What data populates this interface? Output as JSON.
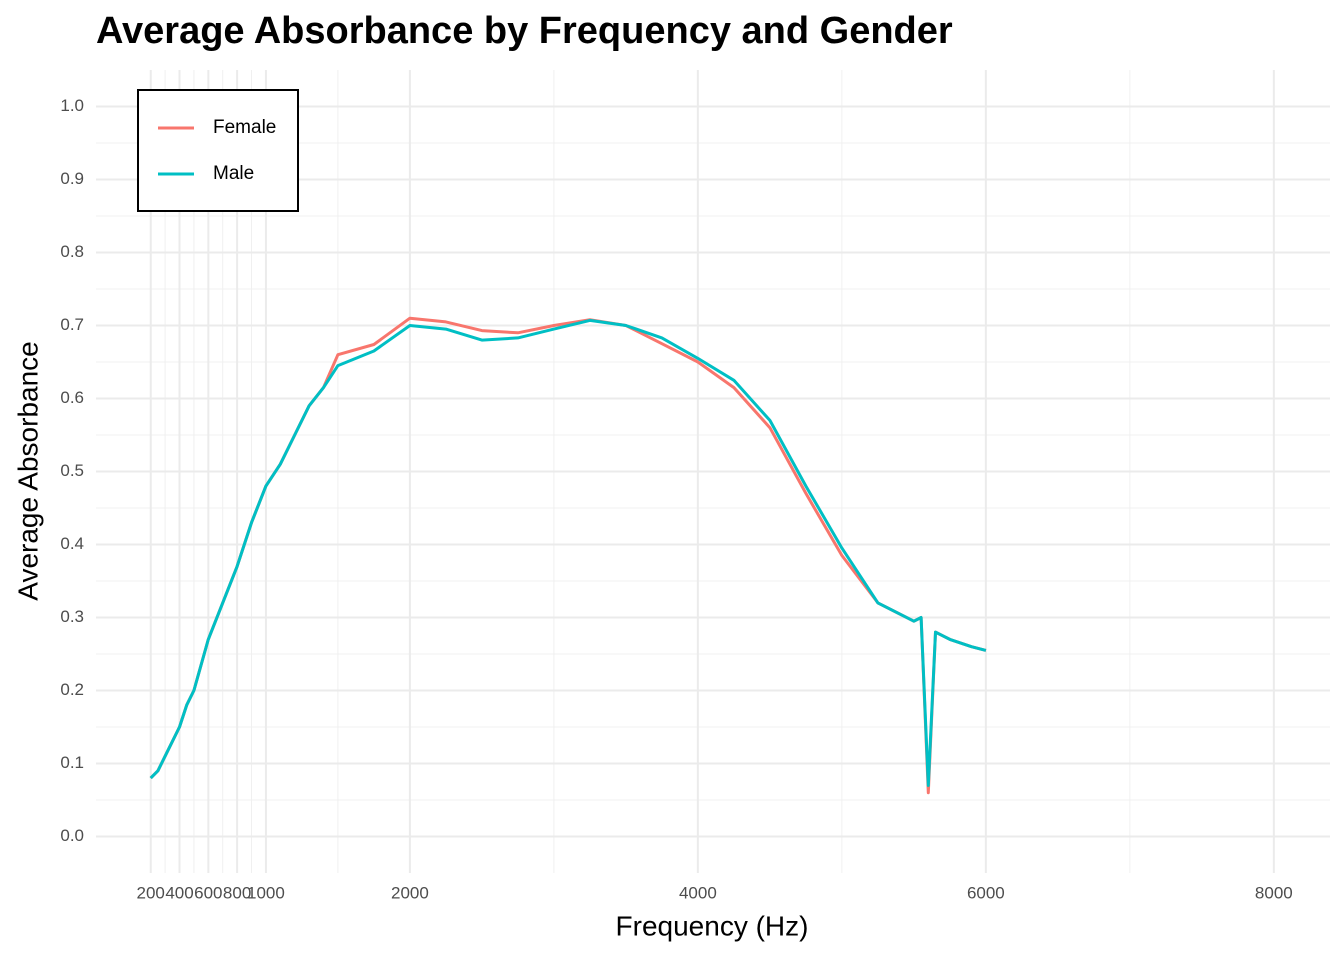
{
  "chart_data": {
    "type": "line",
    "title": "Average Absorbance by Frequency and Gender",
    "x_label": "Frequency (Hz)",
    "y_label": "Average Absorbance",
    "x": [
      200,
      250,
      300,
      400,
      450,
      500,
      600,
      700,
      800,
      900,
      1000,
      1100,
      1200,
      1300,
      1400,
      1500,
      1750,
      2000,
      2250,
      2500,
      2750,
      3000,
      3250,
      3500,
      3750,
      4000,
      4250,
      4500,
      4750,
      5000,
      5250,
      5500,
      5550,
      5600,
      5650,
      5750,
      5900,
      6000
    ],
    "series": [
      {
        "name": "Female",
        "color": "#F8766D",
        "values": [
          0.08,
          0.09,
          0.11,
          0.15,
          0.18,
          0.2,
          0.27,
          0.32,
          0.37,
          0.43,
          0.48,
          0.51,
          0.55,
          0.59,
          0.615,
          0.66,
          0.674,
          0.71,
          0.705,
          0.693,
          0.69,
          0.7,
          0.708,
          0.7,
          0.675,
          0.65,
          0.615,
          0.56,
          0.47,
          0.385,
          0.32,
          0.295,
          0.3,
          0.06,
          0.28,
          0.27,
          0.26,
          0.255
        ]
      },
      {
        "name": "Male",
        "color": "#00BFC4",
        "values": [
          0.08,
          0.09,
          0.11,
          0.15,
          0.18,
          0.2,
          0.27,
          0.32,
          0.37,
          0.43,
          0.48,
          0.51,
          0.55,
          0.59,
          0.615,
          0.645,
          0.665,
          0.7,
          0.695,
          0.68,
          0.683,
          0.695,
          0.707,
          0.7,
          0.683,
          0.655,
          0.625,
          0.57,
          0.48,
          0.395,
          0.32,
          0.295,
          0.3,
          0.07,
          0.28,
          0.27,
          0.26,
          0.255
        ]
      }
    ],
    "xlim": [
      -180,
      8390
    ],
    "xticks": [
      200,
      400,
      600,
      800,
      1000,
      2000,
      4000,
      6000,
      8000
    ],
    "ylim": [
      -0.05,
      1.05
    ],
    "yticks": [
      {
        "value": 0,
        "label": "0.0"
      },
      0.1,
      0.2,
      0.3,
      0.4,
      0.5,
      0.6,
      0.7,
      0.8,
      0.9,
      {
        "value": 1,
        "label": "1.0"
      }
    ],
    "grid": true,
    "legend": "top-left"
  }
}
